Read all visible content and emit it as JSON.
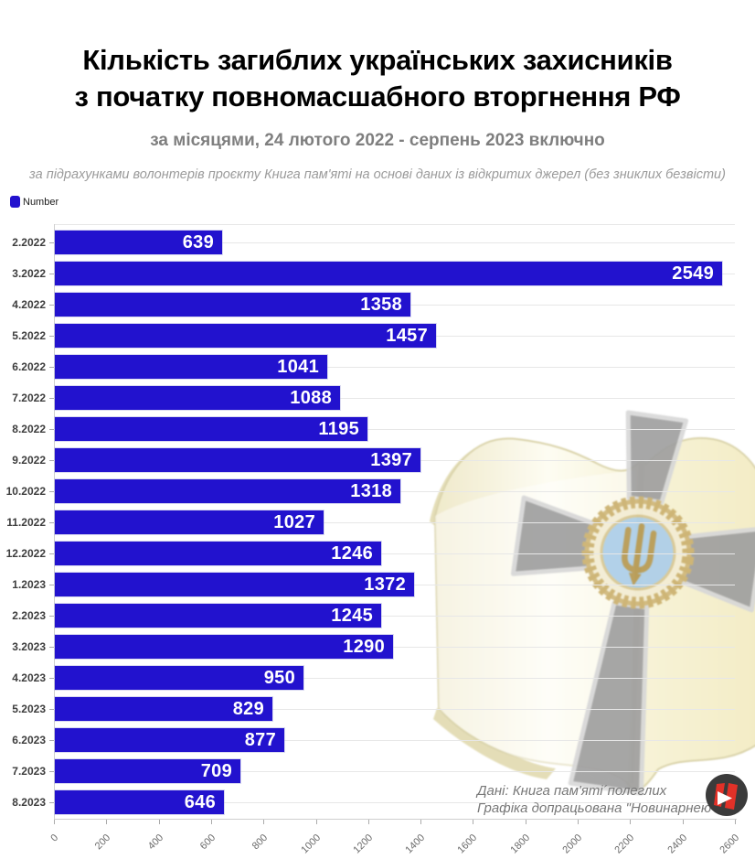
{
  "title": {
    "line1": "Кількість загиблих українських захисників",
    "line2": "з початку повномасшабного вторгнення РФ"
  },
  "subtitle": "за місяцями, 24 лютого 2022 - серпень 2023 включно",
  "source_note": "за підрахунками волонтерів проєкту Книга пам'яті на основі даних із відкритих джерел (без зниклих безвісти)",
  "legend": {
    "label": "Number",
    "color": "#2212ce"
  },
  "chart_data": {
    "type": "bar",
    "orientation": "horizontal",
    "series_name": "Number",
    "categories": [
      "2.2022",
      "3.2022",
      "4.2022",
      "5.2022",
      "6.2022",
      "7.2022",
      "8.2022",
      "9.2022",
      "10.2022",
      "11.2022",
      "12.2022",
      "1.2023",
      "2.2023",
      "3.2023",
      "4.2023",
      "5.2023",
      "6.2023",
      "7.2023",
      "8.2023"
    ],
    "values": [
      639,
      2549,
      1358,
      1457,
      1041,
      1088,
      1195,
      1397,
      1318,
      1027,
      1246,
      1372,
      1245,
      1290,
      950,
      829,
      877,
      709,
      646
    ],
    "xlim": [
      0,
      2600
    ],
    "x_ticks": [
      0,
      200,
      400,
      600,
      800,
      1000,
      1200,
      1400,
      1600,
      1800,
      2000,
      2200,
      2400,
      2600
    ],
    "bar_color": "#2212ce",
    "value_label_color": "#ffffff",
    "grid": true,
    "legend_position": "top-left"
  },
  "credits": {
    "line1": "Дані: Книга пам'яті´полеглих",
    "line2": "Графіка допрацьована \"Новинарнею\""
  },
  "icons": {
    "watermark": "open-book-with-memorial-cross-and-trident",
    "logo": "novynarnia-red-n-play-logo"
  }
}
